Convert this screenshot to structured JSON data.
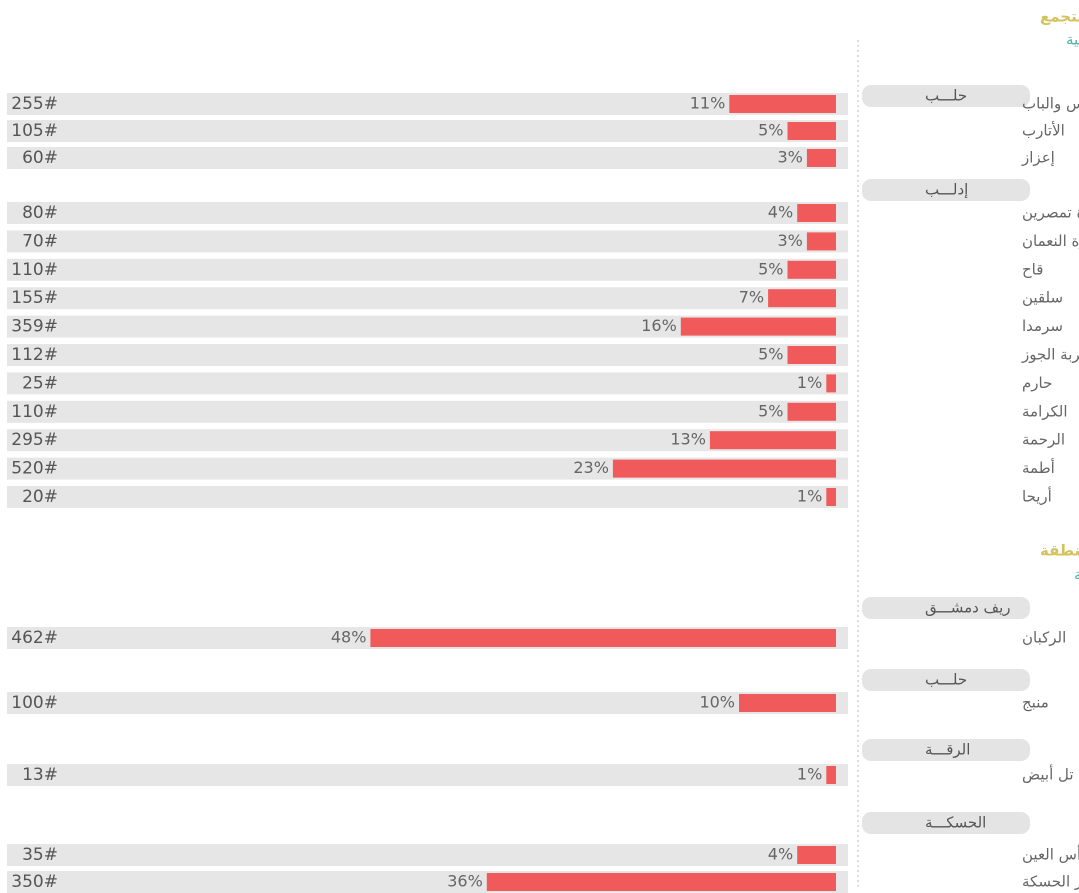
{
  "chart_data": {
    "type": "bar",
    "sections": [
      {
        "level": "مستوى التجمع",
        "region": "المخيمات الشمالية الغربية",
        "groups": [
          {
            "name": "حلـــب",
            "rows": [
              {
                "name": "جرابلس والباب",
                "count": "255#",
                "value": 11,
                "label": "11%"
              },
              {
                "name": "الأتارب",
                "count": "105#",
                "value": 5,
                "label": "5%"
              },
              {
                "name": "إعزاز",
                "count": "60#",
                "value": 3,
                "label": "3%"
              }
            ]
          },
          {
            "name": "إدلـــب",
            "rows": [
              {
                "name": "معرة تمصرين",
                "count": "80#",
                "value": 4,
                "label": "4%"
              },
              {
                "name": "معرة النعمان",
                "count": "70#",
                "value": 3,
                "label": "3%"
              },
              {
                "name": "قاح",
                "count": "110#",
                "value": 5,
                "label": "5%"
              },
              {
                "name": "سلقين",
                "count": "155#",
                "value": 7,
                "label": "7%"
              },
              {
                "name": "سرمدا",
                "count": "359#",
                "value": 16,
                "label": "16%"
              },
              {
                "name": "خربة الجوز",
                "count": "112#",
                "value": 5,
                "label": "5%"
              },
              {
                "name": "حارم",
                "count": "25#",
                "value": 1,
                "label": "1%"
              },
              {
                "name": "الكرامة",
                "count": "110#",
                "value": 5,
                "label": "5%"
              },
              {
                "name": "الرحمة",
                "count": "295#",
                "value": 13,
                "label": "13%"
              },
              {
                "name": "أطمة",
                "count": "520#",
                "value": 23,
                "label": "23%"
              },
              {
                "name": "أريحا",
                "count": "20#",
                "value": 1,
                "label": "1%"
              }
            ]
          }
        ]
      },
      {
        "level": "مستوى المنطقة",
        "region": "المخيمات الشمالية الشرقية",
        "groups": [
          {
            "name": "ريف دمشـــق",
            "rows": [
              {
                "name": "الركبان",
                "count": "462#",
                "value": 48,
                "label": "48%"
              }
            ]
          },
          {
            "name": "حلـــب",
            "rows": [
              {
                "name": "منبج",
                "count": "100#",
                "value": 10,
                "label": "10%"
              }
            ]
          },
          {
            "name": "الرقـــة",
            "rows": [
              {
                "name": "تل أبيض",
                "count": "13#",
                "value": 1,
                "label": "1%"
              }
            ]
          },
          {
            "name": "الحسكـــة",
            "rows": [
              {
                "name": "رأس العين",
                "count": "35#",
                "value": 4,
                "label": "4%"
              },
              {
                "name": "مركز الحسكة",
                "count": "350#",
                "value": 36,
                "label": "36%"
              }
            ]
          }
        ]
      }
    ],
    "color": "#f05a5a"
  }
}
